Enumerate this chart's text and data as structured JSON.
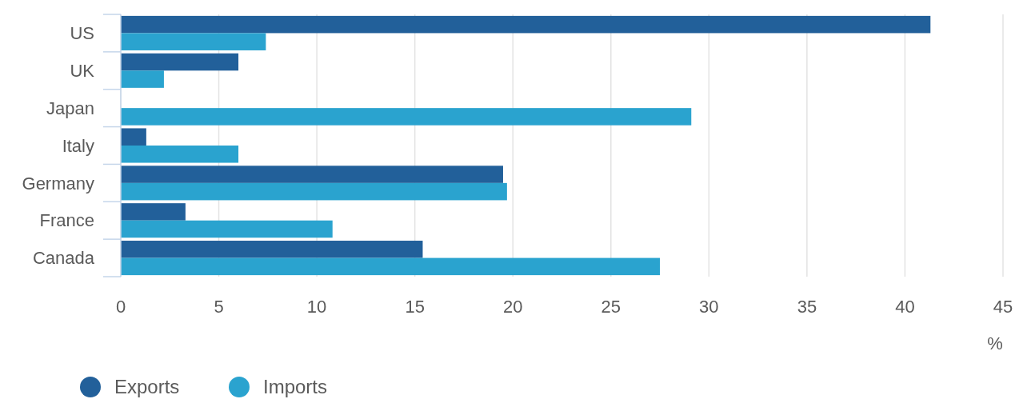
{
  "chart_data": {
    "type": "bar",
    "orientation": "horizontal",
    "categories": [
      "US",
      "UK",
      "Japan",
      "Italy",
      "Germany",
      "France",
      "Canada"
    ],
    "series": [
      {
        "name": "Exports",
        "color": "#22609a",
        "values": [
          41.3,
          6.0,
          0,
          1.3,
          19.5,
          3.3,
          15.4
        ]
      },
      {
        "name": "Imports",
        "color": "#2aa3cf",
        "values": [
          7.4,
          2.2,
          29.1,
          6.0,
          19.7,
          10.8,
          27.5
        ]
      }
    ],
    "xlim": [
      0,
      45
    ],
    "xticks": [
      0,
      5,
      10,
      15,
      20,
      25,
      30,
      35,
      40,
      45
    ],
    "xlabel": "%",
    "grid": "x",
    "legend": "bottom left"
  }
}
